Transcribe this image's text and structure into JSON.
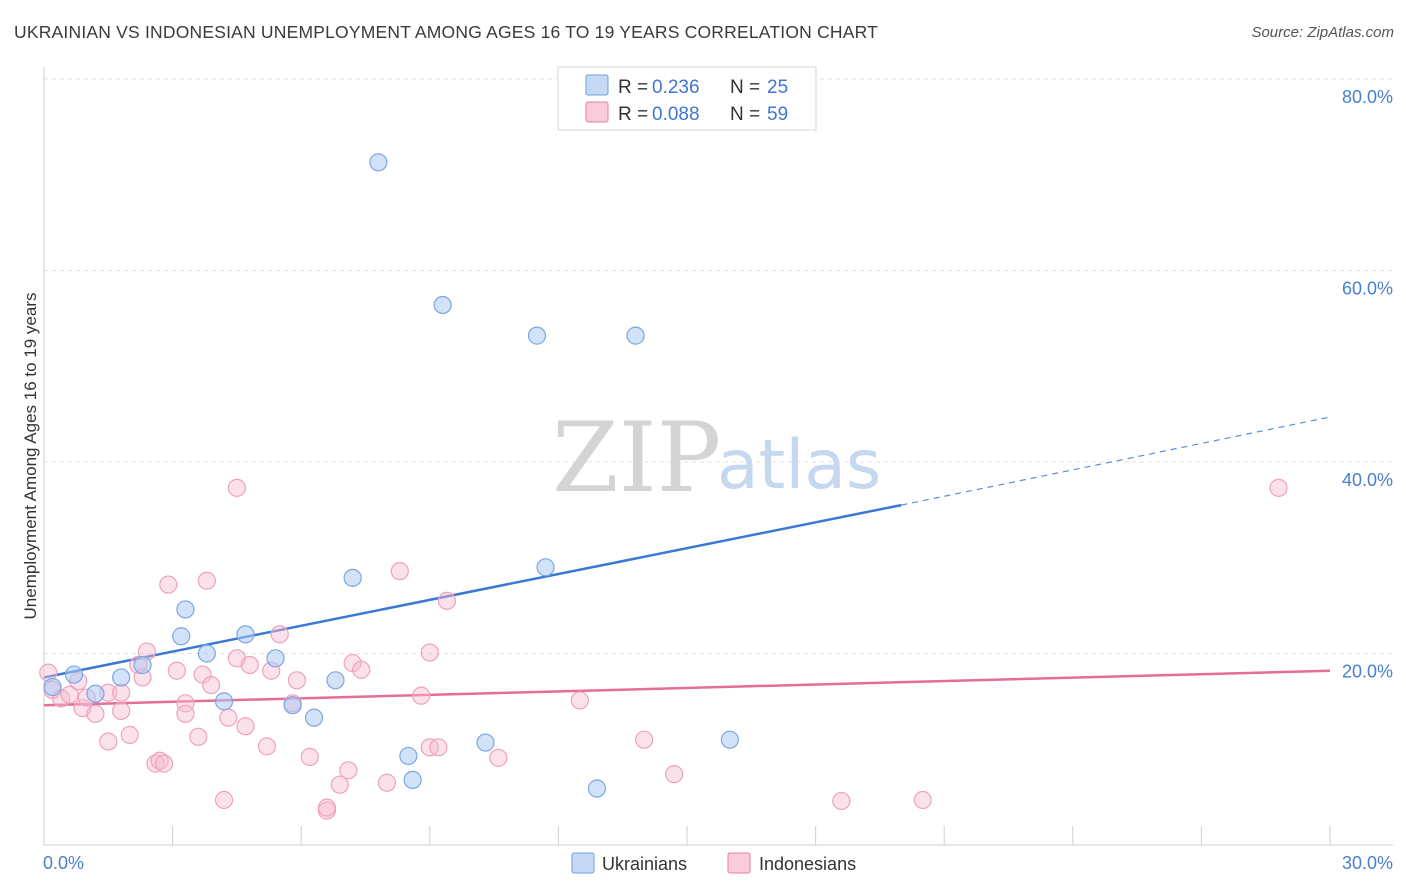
{
  "title": "UKRAINIAN VS INDONESIAN UNEMPLOYMENT AMONG AGES 16 TO 19 YEARS CORRELATION CHART",
  "source": "Source: ZipAtlas.com",
  "watermark": {
    "zip": "ZIP",
    "atlas": "atlas"
  },
  "legend": {
    "r_label": "R =",
    "n_label": "N =",
    "rows": [
      {
        "series": "Ukrainians",
        "r": "0.236",
        "n": "25",
        "color": "#6fa0e0",
        "fill": "#c5d9f4"
      },
      {
        "series": "Indonesians",
        "r": "0.088",
        "n": "59",
        "color": "#e87fa3",
        "fill": "#f9cbdb"
      }
    ]
  },
  "bottom_legend": [
    {
      "label": "Ukrainians",
      "color": "#6fa0e0",
      "fill": "#c5d9f4"
    },
    {
      "label": "Indonesians",
      "color": "#e87fa3",
      "fill": "#f9cbdb"
    }
  ],
  "chart_data": {
    "type": "scatter",
    "title": "UKRAINIAN VS INDONESIAN UNEMPLOYMENT AMONG AGES 16 TO 19 YEARS CORRELATION CHART",
    "xlabel": "",
    "ylabel": "Unemployment Among Ages 16 to 19 years",
    "xlim": [
      0,
      30
    ],
    "ylim": [
      0,
      80
    ],
    "x_tick_labels": [
      "0.0%",
      "30.0%"
    ],
    "y_ticks": [
      20,
      40,
      60,
      80
    ],
    "y_tick_labels": [
      "20.0%",
      "40.0%",
      "60.0%",
      "80.0%"
    ],
    "grid": true,
    "legend_position": "top-center",
    "series": [
      {
        "name": "Ukrainians",
        "color": "#4a7fcf",
        "points": [
          [
            0.2,
            16.5
          ],
          [
            0.7,
            17.8
          ],
          [
            1.2,
            15.8
          ],
          [
            1.8,
            17.5
          ],
          [
            2.3,
            18.8
          ],
          [
            3.2,
            21.8
          ],
          [
            3.3,
            24.6
          ],
          [
            3.8,
            20.0
          ],
          [
            4.2,
            15.0
          ],
          [
            4.7,
            22.0
          ],
          [
            5.4,
            19.5
          ],
          [
            5.8,
            14.6
          ],
          [
            6.3,
            13.3
          ],
          [
            6.8,
            17.2
          ],
          [
            7.2,
            27.9
          ],
          [
            7.8,
            71.3
          ],
          [
            8.5,
            9.3
          ],
          [
            8.6,
            6.8
          ],
          [
            9.3,
            56.4
          ],
          [
            10.3,
            10.7
          ],
          [
            11.5,
            53.2
          ],
          [
            11.7,
            29.0
          ],
          [
            12.9,
            5.9
          ],
          [
            13.8,
            53.2
          ],
          [
            16.0,
            11.0
          ]
        ],
        "trend": {
          "x0": 0,
          "y0": 17.5,
          "x1": 20,
          "y1": 35.5,
          "dash_x1": 30,
          "dash_y1": 44.7
        }
      },
      {
        "name": "Indonesians",
        "color": "#e05c8c",
        "points": [
          [
            0.1,
            18.0
          ],
          [
            0.2,
            16.2
          ],
          [
            0.4,
            15.3
          ],
          [
            0.6,
            15.7
          ],
          [
            0.8,
            17.1
          ],
          [
            0.9,
            14.3
          ],
          [
            1.0,
            15.4
          ],
          [
            1.2,
            13.7
          ],
          [
            1.5,
            15.9
          ],
          [
            1.5,
            10.8
          ],
          [
            1.8,
            15.9
          ],
          [
            1.8,
            14.0
          ],
          [
            2.0,
            11.5
          ],
          [
            2.2,
            18.8
          ],
          [
            2.3,
            17.5
          ],
          [
            2.4,
            20.2
          ],
          [
            2.6,
            8.5
          ],
          [
            2.7,
            8.8
          ],
          [
            2.8,
            8.5
          ],
          [
            2.9,
            27.2
          ],
          [
            3.1,
            18.2
          ],
          [
            3.3,
            14.8
          ],
          [
            3.3,
            13.7
          ],
          [
            3.6,
            11.3
          ],
          [
            3.7,
            17.8
          ],
          [
            3.8,
            27.6
          ],
          [
            3.9,
            16.7
          ],
          [
            4.2,
            4.7
          ],
          [
            4.3,
            13.3
          ],
          [
            4.5,
            19.5
          ],
          [
            4.5,
            37.3
          ],
          [
            4.7,
            12.4
          ],
          [
            4.8,
            18.8
          ],
          [
            5.2,
            10.3
          ],
          [
            5.3,
            18.2
          ],
          [
            5.5,
            22.0
          ],
          [
            5.8,
            14.8
          ],
          [
            5.9,
            17.2
          ],
          [
            6.2,
            9.2
          ],
          [
            6.6,
            3.6
          ],
          [
            6.6,
            3.9
          ],
          [
            6.9,
            6.3
          ],
          [
            7.1,
            7.8
          ],
          [
            7.2,
            19.0
          ],
          [
            7.4,
            18.3
          ],
          [
            8.0,
            6.5
          ],
          [
            8.3,
            28.6
          ],
          [
            8.8,
            15.6
          ],
          [
            9.0,
            20.1
          ],
          [
            9.0,
            10.2
          ],
          [
            9.2,
            10.2
          ],
          [
            9.4,
            25.5
          ],
          [
            10.6,
            9.1
          ],
          [
            12.5,
            15.1
          ],
          [
            14.0,
            11.0
          ],
          [
            14.7,
            7.4
          ],
          [
            18.6,
            4.6
          ],
          [
            20.5,
            4.7
          ],
          [
            28.8,
            37.3
          ]
        ],
        "trend": {
          "x0": 0,
          "y0": 14.6,
          "x1": 30,
          "y1": 18.2
        }
      }
    ]
  }
}
